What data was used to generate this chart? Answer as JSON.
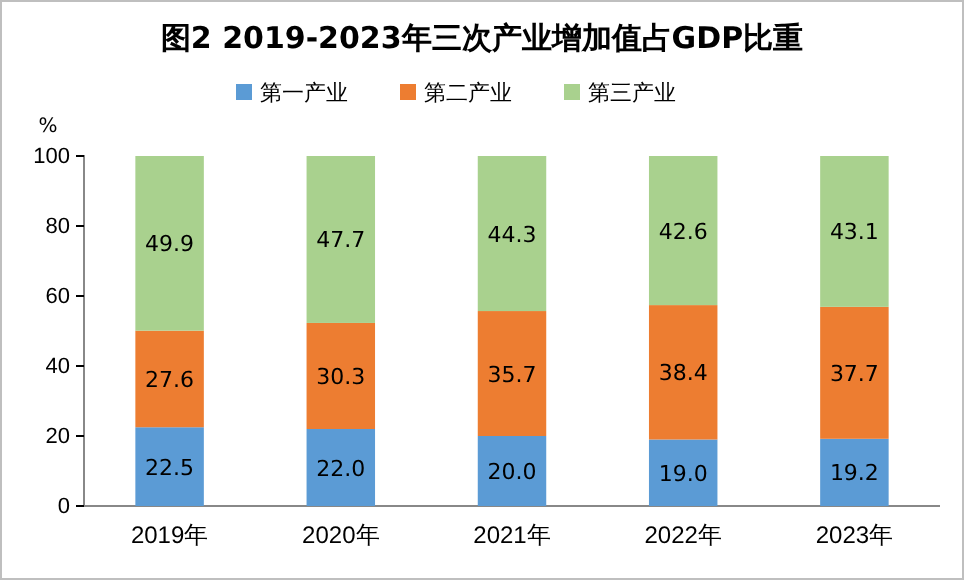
{
  "chart_data": {
    "type": "bar",
    "title": "图2  2019-2023年三次产业增加值占GDP比重",
    "ylabel": "%",
    "categories": [
      "2019年",
      "2020年",
      "2021年",
      "2022年",
      "2023年"
    ],
    "series": [
      {
        "name": "第一产业",
        "color": "#5b9bd5",
        "values": [
          22.5,
          22.0,
          20.0,
          19.0,
          19.2
        ],
        "value_labels": [
          "22.5",
          "22.0",
          "20.0",
          "19.0",
          "19.2"
        ]
      },
      {
        "name": "第二产业",
        "color": "#ed7d31",
        "values": [
          27.6,
          30.3,
          35.7,
          38.4,
          37.7
        ],
        "value_labels": [
          "27.6",
          "30.3",
          "35.7",
          "38.4",
          "37.7"
        ]
      },
      {
        "name": "第三产业",
        "color": "#a9d18e",
        "values": [
          49.9,
          47.7,
          44.3,
          42.6,
          43.1
        ],
        "value_labels": [
          "49.9",
          "47.7",
          "44.3",
          "42.6",
          "43.1"
        ]
      }
    ],
    "stacked": true,
    "ylim": [
      0,
      100
    ],
    "yticks": [
      0,
      20,
      40,
      60,
      80,
      100
    ],
    "legend": "top"
  }
}
